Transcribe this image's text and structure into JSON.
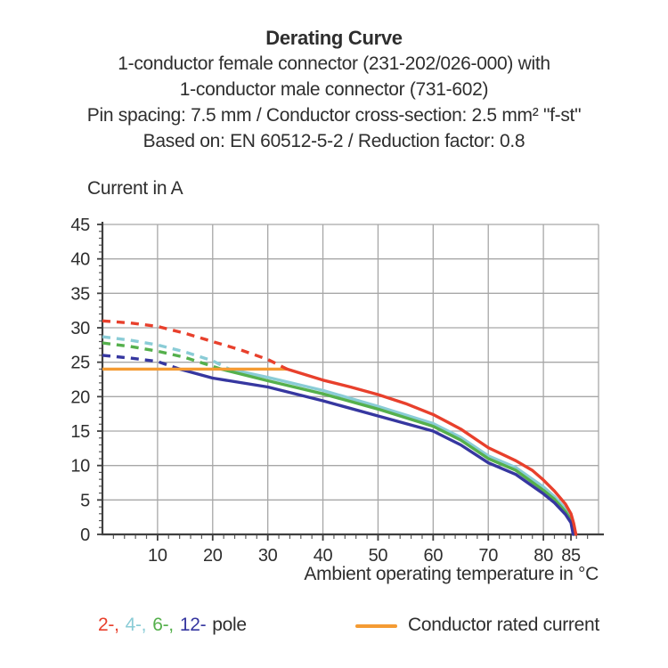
{
  "header": {
    "title": "Derating Curve",
    "subtitle_lines": [
      "1-conductor female connector (231-202/026-000) with",
      "1-conductor male connector (731-602)",
      "Pin spacing: 7.5 mm / Conductor cross-section: 2.5 mm² \"f-st\"",
      "Based on: EN 60512-5-2 / Reduction factor: 0.8"
    ]
  },
  "colors": {
    "red_2pole": "#e8402c",
    "lightblue_4pole": "#8accd6",
    "green_6pole": "#55b04c",
    "darkblue_12pole": "#3637a0",
    "orange_rated": "#f49b33",
    "grid": "#a7a7a7",
    "axis": "#3f3f3f",
    "text": "#2e2e2e"
  },
  "chart_data": {
    "type": "line",
    "title": "Derating Curve",
    "ylabel": "Current in A",
    "xlabel": "Ambient operating temperature in °C",
    "xlim": [
      0,
      90
    ],
    "ylim": [
      0,
      45
    ],
    "x_major_ticks": [
      10,
      20,
      30,
      40,
      50,
      60,
      70,
      80,
      85
    ],
    "y_major_ticks": [
      0,
      5,
      10,
      15,
      20,
      25,
      30,
      35,
      40,
      45
    ],
    "x_minor_step": 2,
    "y_minor_step": 1,
    "grid": true,
    "legend_position": "bottom",
    "series": [
      {
        "name": "2-pole",
        "color": "#e8402c",
        "dashed_until_x": 33.5,
        "points": [
          [
            0,
            31
          ],
          [
            5,
            30.7
          ],
          [
            10,
            30.2
          ],
          [
            15,
            29.2
          ],
          [
            20,
            28.0
          ],
          [
            25,
            26.8
          ],
          [
            30,
            25.4
          ],
          [
            33.5,
            24
          ],
          [
            40,
            22.4
          ],
          [
            45,
            21.4
          ],
          [
            50,
            20.3
          ],
          [
            55,
            19.0
          ],
          [
            60,
            17.4
          ],
          [
            65,
            15.3
          ],
          [
            70,
            12.6
          ],
          [
            75,
            10.7
          ],
          [
            78,
            9.3
          ],
          [
            80,
            7.9
          ],
          [
            82,
            6.3
          ],
          [
            84,
            4.4
          ],
          [
            85,
            3.0
          ],
          [
            85.5,
            1.6
          ],
          [
            85.9,
            0
          ]
        ]
      },
      {
        "name": "4-pole",
        "color": "#8accd6",
        "dashed_until_x": 23,
        "points": [
          [
            0,
            28.7
          ],
          [
            5,
            28.2
          ],
          [
            10,
            27.5
          ],
          [
            15,
            26.5
          ],
          [
            20,
            25.2
          ],
          [
            23,
            24
          ],
          [
            30,
            22.8
          ],
          [
            40,
            20.9
          ],
          [
            50,
            18.6
          ],
          [
            60,
            16.1
          ],
          [
            65,
            14.1
          ],
          [
            70,
            11.4
          ],
          [
            75,
            9.7
          ],
          [
            80,
            6.9
          ],
          [
            82,
            5.5
          ],
          [
            84,
            3.7
          ],
          [
            85,
            2.4
          ],
          [
            85.7,
            0
          ]
        ]
      },
      {
        "name": "6-pole",
        "color": "#55b04c",
        "dashed_until_x": 21.5,
        "points": [
          [
            0,
            27.8
          ],
          [
            5,
            27.3
          ],
          [
            10,
            26.6
          ],
          [
            15,
            25.7
          ],
          [
            20,
            24.4
          ],
          [
            21.5,
            24
          ],
          [
            30,
            22.3
          ],
          [
            40,
            20.4
          ],
          [
            50,
            18.2
          ],
          [
            60,
            15.7
          ],
          [
            65,
            13.7
          ],
          [
            70,
            11.0
          ],
          [
            75,
            9.3
          ],
          [
            80,
            6.4
          ],
          [
            82,
            5.1
          ],
          [
            84,
            3.3
          ],
          [
            85,
            2.1
          ],
          [
            85.6,
            0
          ]
        ]
      },
      {
        "name": "12-pole",
        "color": "#3637a0",
        "dashed_until_x": 14,
        "points": [
          [
            0,
            26.0
          ],
          [
            5,
            25.6
          ],
          [
            10,
            25.1
          ],
          [
            14,
            24
          ],
          [
            20,
            22.7
          ],
          [
            30,
            21.4
          ],
          [
            40,
            19.4
          ],
          [
            50,
            17.2
          ],
          [
            60,
            15.0
          ],
          [
            65,
            13.0
          ],
          [
            70,
            10.4
          ],
          [
            75,
            8.7
          ],
          [
            80,
            5.9
          ],
          [
            82,
            4.6
          ],
          [
            84,
            2.9
          ],
          [
            85,
            1.7
          ],
          [
            85.4,
            0
          ]
        ]
      }
    ],
    "reference_line": {
      "name": "Conductor rated current",
      "color": "#f49b33",
      "y": 24,
      "x_start": 0,
      "x_end": 33.5
    }
  },
  "legend": {
    "pole_segments": [
      {
        "text": "2-,",
        "color": "#e8402c"
      },
      {
        "text": "4-,",
        "color": "#8accd6"
      },
      {
        "text": "6-,",
        "color": "#55b04c"
      },
      {
        "text": "12-",
        "color": "#3637a0"
      },
      {
        "text": "pole",
        "color": "#2e2e2e"
      }
    ],
    "rated_current_label": "Conductor rated current"
  }
}
